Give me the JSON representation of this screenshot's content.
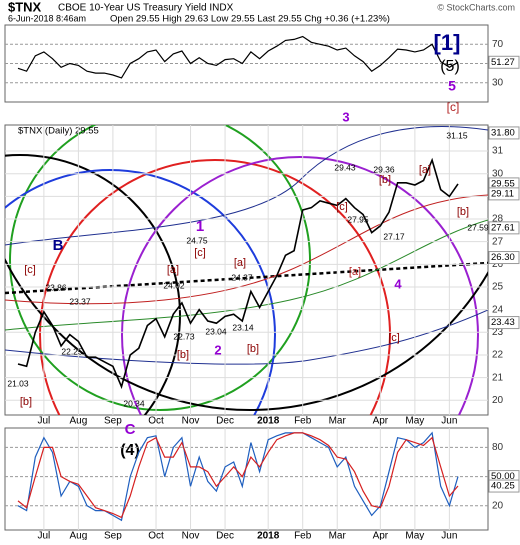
{
  "header": {
    "symbol": "$TNX",
    "name": "CBOE 10-Year US Treasury Yield  INDX",
    "date": "6-Jun-2018 8:46am",
    "quote": "Open 29.55  High 29.63  Low 29.55  Last 29.55  Chg +0.36 (+1.23%)",
    "credit": "© StockCharts.com"
  },
  "chart_data": [
    {
      "type": "line",
      "color": "#000000",
      "ylim": [
        10,
        90
      ],
      "yticks": [
        30,
        50,
        70
      ],
      "grid": true,
      "series": [
        {
          "color": "#000000",
          "values": [
            45,
            42,
            58,
            62,
            55,
            46,
            50,
            48,
            42,
            40,
            40,
            38,
            35,
            50,
            55,
            62,
            64,
            52,
            60,
            63,
            50,
            56,
            50,
            48,
            54,
            55,
            50,
            62,
            55,
            63,
            68,
            74,
            75,
            78,
            72,
            70,
            68,
            64,
            66,
            58,
            52,
            42,
            48,
            56,
            65,
            64,
            62,
            64,
            70,
            52,
            46,
            51.27
          ]
        }
      ],
      "levels": [
        51.27
      ],
      "level_labels": [
        "51.27"
      ]
    },
    {
      "type": "line",
      "legend": "$TNX (Daily) 29.55",
      "ylim": [
        19.35,
        32.15
      ],
      "yticks": [
        20,
        21,
        22,
        23,
        24,
        25,
        26,
        27,
        28,
        29,
        30,
        31
      ],
      "grid": true,
      "categories": [
        null,
        null,
        null,
        "Jul",
        null,
        null,
        null,
        "Aug",
        null,
        null,
        null,
        "Sep",
        null,
        null,
        null,
        null,
        "Oct",
        null,
        null,
        null,
        "Nov",
        null,
        null,
        null,
        "Dec",
        null,
        null,
        null,
        null,
        "2018",
        null,
        null,
        null,
        "Feb",
        null,
        null,
        null,
        "Mar",
        null,
        null,
        null,
        null,
        "Apr",
        null,
        null,
        null,
        "May",
        null,
        null,
        null,
        "Jun",
        null
      ],
      "series": [
        {
          "color": "#000000",
          "values": [
            21.6,
            21.5,
            23.0,
            23.9,
            23.3,
            22.4,
            22.9,
            22.6,
            21.9,
            21.9,
            21.7,
            21.5,
            20.6,
            22.0,
            22.3,
            23.3,
            23.6,
            22.8,
            23.8,
            24.3,
            23.4,
            24.0,
            23.5,
            23.4,
            23.7,
            23.8,
            23.5,
            24.8,
            24.1,
            24.8,
            25.5,
            26.4,
            26.6,
            28.4,
            28.5,
            28.8,
            28.7,
            28.6,
            28.9,
            28.5,
            28.2,
            27.4,
            27.7,
            28.3,
            29.6,
            29.6,
            29.5,
            29.7,
            30.6,
            29.3,
            29.0,
            29.55
          ]
        }
      ],
      "levels": [
        31.8,
        29.55,
        29.11,
        27.61,
        26.3,
        23.43
      ],
      "level_labels": [
        "31.80",
        "29.55",
        "29.11",
        "27.61",
        "26.30",
        "23.43"
      ],
      "annotations": [
        "[1]",
        "(5)",
        "5",
        "[c]",
        "3",
        "1",
        "B",
        "[c]",
        "[a]",
        "[c]",
        "[b]",
        "2",
        "[a]",
        "[b]",
        "[c]",
        "[b]",
        "[a]",
        "[c]",
        "4",
        "[a]",
        "[b]",
        "[b]",
        "C",
        "(4)",
        "21.03",
        "23.86",
        "23.37",
        "22.25",
        "20.34",
        "22.73",
        "24.02",
        "24.75",
        "23.04",
        "24.37",
        "23.14",
        "29.43",
        "27.95",
        "29.36",
        "27.17",
        "31.15",
        "27.59"
      ]
    },
    {
      "type": "line",
      "ylim": [
        -5,
        100
      ],
      "yticks": [
        20,
        50,
        80
      ],
      "grid": true,
      "categories": [
        null,
        null,
        null,
        "Jul",
        null,
        null,
        null,
        "Aug",
        null,
        null,
        null,
        "Sep",
        null,
        null,
        null,
        null,
        "Oct",
        null,
        null,
        null,
        "Nov",
        null,
        null,
        null,
        "Dec",
        null,
        null,
        null,
        null,
        "2018",
        null,
        null,
        null,
        "Feb",
        null,
        null,
        null,
        "Mar",
        null,
        null,
        null,
        null,
        "Apr",
        null,
        null,
        null,
        "May",
        null,
        null,
        null,
        "Jun",
        null
      ],
      "series": [
        {
          "color": "#1f5fbf",
          "values": [
            20,
            15,
            70,
            90,
            75,
            30,
            45,
            40,
            20,
            15,
            15,
            10,
            5,
            50,
            75,
            90,
            92,
            50,
            80,
            90,
            40,
            70,
            45,
            35,
            60,
            65,
            40,
            85,
            55,
            88,
            92,
            95,
            95,
            95,
            90,
            85,
            80,
            60,
            70,
            40,
            25,
            10,
            20,
            55,
            90,
            88,
            80,
            85,
            95,
            40,
            20,
            50
          ]
        },
        {
          "color": "#d62020",
          "values": [
            25,
            18,
            50,
            80,
            80,
            50,
            45,
            42,
            30,
            18,
            15,
            12,
            8,
            30,
            60,
            85,
            90,
            70,
            70,
            85,
            60,
            60,
            55,
            40,
            50,
            60,
            50,
            70,
            60,
            75,
            88,
            92,
            95,
            95,
            92,
            88,
            82,
            70,
            68,
            55,
            35,
            20,
            18,
            40,
            75,
            88,
            85,
            82,
            90,
            60,
            30,
            40.25
          ]
        }
      ],
      "levels": [
        50,
        40.25
      ],
      "level_labels": [
        "50.00",
        "40.25"
      ]
    }
  ]
}
